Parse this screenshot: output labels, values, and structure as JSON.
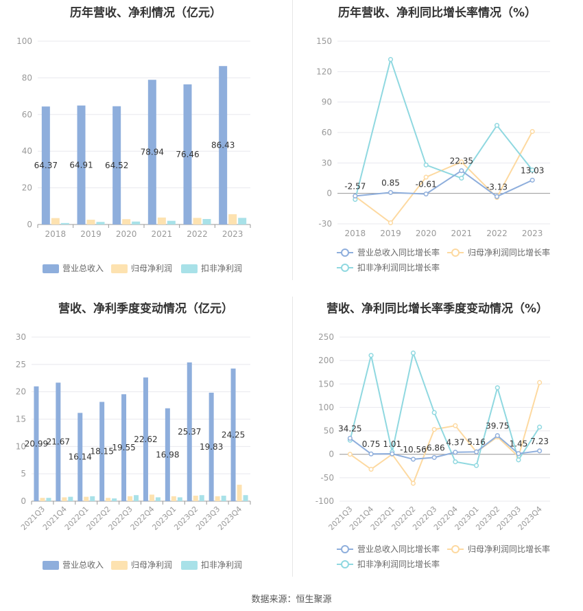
{
  "source_label": "数据来源：恒生聚源",
  "charts": {
    "annual_amount": {
      "type": "bar",
      "title": "历年营收、净利情况（亿元）",
      "categories": [
        "2018",
        "2019",
        "2020",
        "2021",
        "2022",
        "2023"
      ],
      "series": [
        {
          "name": "营业总收入",
          "color": "#8eaedc",
          "values": [
            64.37,
            64.91,
            64.52,
            78.94,
            76.46,
            86.43
          ],
          "labels": [
            "64.37",
            "64.91",
            "64.52",
            "78.94",
            "76.46",
            "86.43"
          ]
        },
        {
          "name": "归母净利润",
          "color": "#fde2b0",
          "values": [
            3.5,
            2.6,
            2.9,
            3.8,
            3.6,
            5.6
          ]
        },
        {
          "name": "扣非净利润",
          "color": "#a8e1e8",
          "values": [
            0.8,
            1.4,
            1.6,
            2.0,
            3.0,
            3.6
          ]
        }
      ],
      "ylim": [
        0,
        100
      ],
      "yticks": [
        0,
        20,
        40,
        60,
        80,
        100
      ],
      "legend": "bottom"
    },
    "annual_growth": {
      "type": "line",
      "title": "历年营收、净利同比增长率情况（%）",
      "categories": [
        "2018",
        "2019",
        "2020",
        "2021",
        "2022",
        "2023"
      ],
      "series": [
        {
          "name": "营业总收入同比增长率",
          "color": "#8eaedc",
          "values": [
            -2.57,
            0.85,
            -0.61,
            22.35,
            -3.13,
            13.03
          ],
          "labels": [
            "-2.57",
            "0.85",
            "-0.61",
            "22.35",
            "-3.13",
            "13.03"
          ]
        },
        {
          "name": "归母净利润同比增长率",
          "color": "#fdd9a0",
          "values": [
            -3,
            -29,
            16,
            31,
            -4,
            61
          ]
        },
        {
          "name": "扣非净利润同比增长率",
          "color": "#8fd8e0",
          "values": [
            -6,
            132,
            28,
            15,
            67,
            23
          ]
        }
      ],
      "ylim": [
        -30,
        150
      ],
      "yticks": [
        -30,
        0,
        30,
        60,
        90,
        120,
        150
      ],
      "legend": "bottom"
    },
    "quarterly_amount": {
      "type": "bar",
      "title": "营收、净利季度变动情况（亿元）",
      "categories": [
        "2021Q3",
        "2021Q4",
        "2022Q1",
        "2022Q2",
        "2022Q3",
        "2022Q4",
        "2023Q1",
        "2023Q2",
        "2023Q3",
        "2023Q4"
      ],
      "series": [
        {
          "name": "营业总收入",
          "color": "#8eaedc",
          "values": [
            20.99,
            21.67,
            16.14,
            18.15,
            19.55,
            22.62,
            16.98,
            25.37,
            19.83,
            24.25
          ],
          "labels": [
            "20.99",
            "21.67",
            "16.14",
            "18.15",
            "19.55",
            "22.62",
            "16.98",
            "25.37",
            "19.83",
            "24.25"
          ]
        },
        {
          "name": "归母净利润",
          "color": "#fde2b0",
          "values": [
            0.6,
            0.7,
            0.8,
            0.6,
            0.9,
            1.2,
            0.9,
            1.0,
            0.9,
            3.0
          ]
        },
        {
          "name": "扣非净利润",
          "color": "#a8e1e8",
          "values": [
            0.6,
            0.8,
            0.9,
            0.5,
            1.1,
            0.7,
            0.7,
            1.1,
            1.0,
            1.1
          ]
        }
      ],
      "ylim": [
        0,
        30
      ],
      "yticks": [
        0,
        5,
        10,
        15,
        20,
        25,
        30
      ],
      "legend": "bottom"
    },
    "quarterly_growth": {
      "type": "line",
      "title": "营收、净利同比增长率季度变动情况（%）",
      "categories": [
        "2021Q3",
        "2021Q4",
        "2022Q1",
        "2022Q2",
        "2022Q3",
        "2022Q4",
        "2023Q1",
        "2023Q2",
        "2023Q3",
        "2023Q4"
      ],
      "series": [
        {
          "name": "营业总收入同比增长率",
          "color": "#8eaedc",
          "values": [
            34.25,
            0.75,
            1.01,
            -10.56,
            -6.86,
            4.37,
            5.16,
            39.75,
            1.45,
            7.23
          ],
          "labels": [
            "34.25",
            "0.75",
            "1.01",
            "-10.56",
            "-6.86",
            "4.37",
            "5.16",
            "39.75",
            "1.45",
            "7.23"
          ]
        },
        {
          "name": "归母净利润同比增长率",
          "color": "#fdd9a0",
          "values": [
            0,
            -32,
            0,
            -62,
            53,
            61,
            5,
            37,
            -5,
            153
          ]
        },
        {
          "name": "扣非净利润同比增长率",
          "color": "#8fd8e0",
          "values": [
            30,
            211,
            5,
            216,
            89,
            -16,
            -24,
            142,
            -12,
            58
          ]
        }
      ],
      "ylim": [
        -100,
        250
      ],
      "yticks": [
        -100,
        -50,
        0,
        50,
        100,
        150,
        200,
        250
      ],
      "legend": "bottom"
    }
  }
}
